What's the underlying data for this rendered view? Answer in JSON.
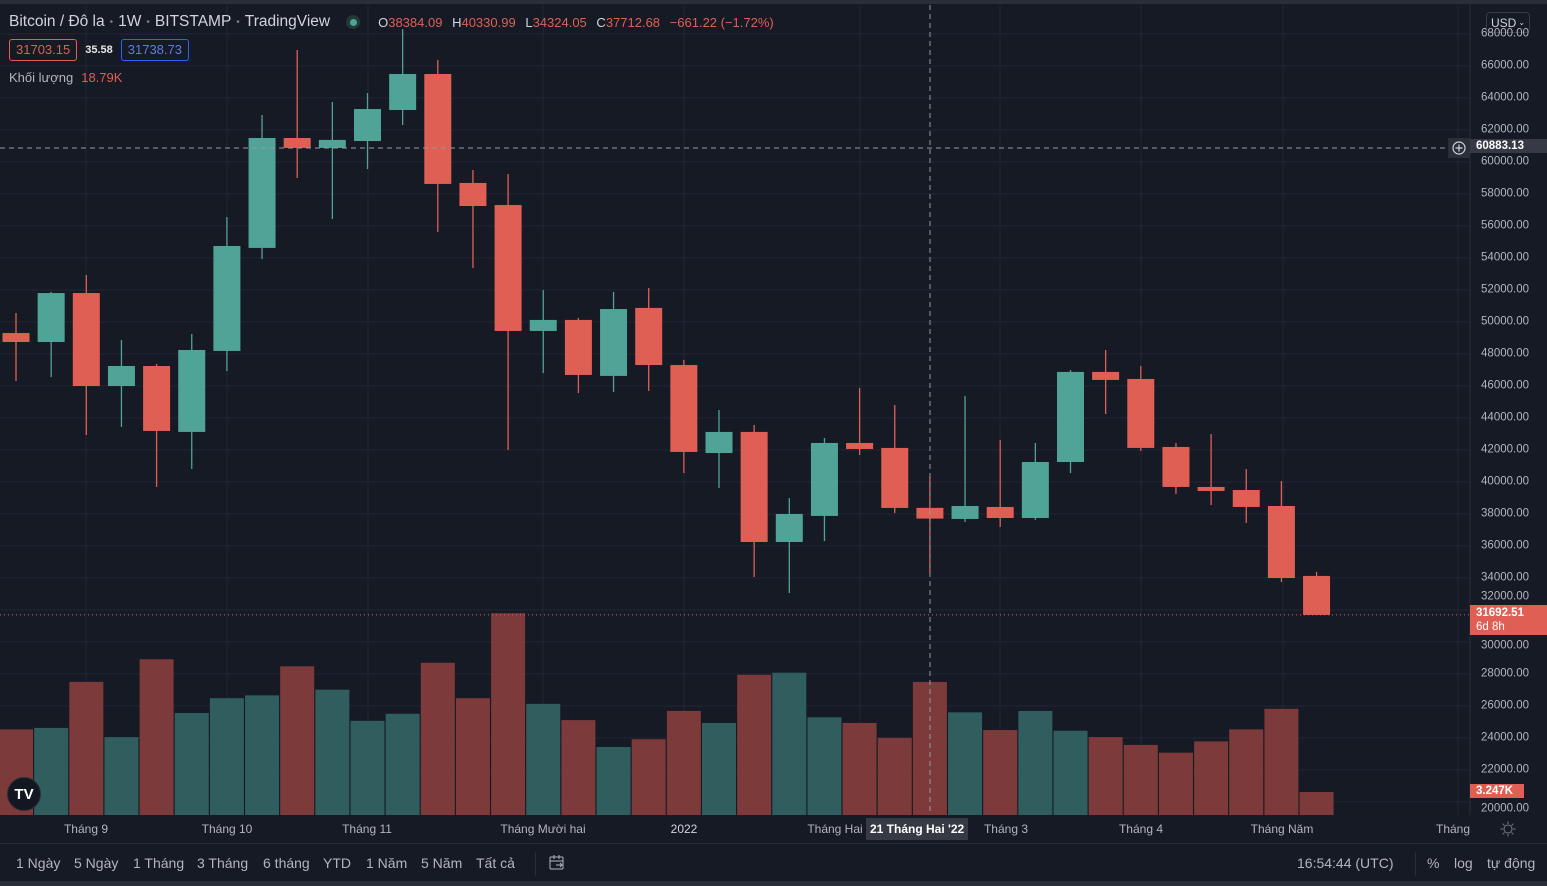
{
  "header": {
    "symbol": "Bitcoin / Đô la",
    "interval": "1W",
    "exchange": "BITSTAMP",
    "source": "TradingView",
    "live_icon": "market-open-dot-icon",
    "ohlc": {
      "o_label": "O",
      "o": "38384.09",
      "h_label": "H",
      "h": "40330.99",
      "l_label": "L",
      "l": "34324.05",
      "c_label": "C",
      "c": "37712.68",
      "change": "−661.22 (−1.72%)"
    },
    "bid": "31703.15",
    "spread": "35.58",
    "ask": "31738.73",
    "volume_label": "Khối lượng",
    "volume_value": "18.79K"
  },
  "currency_button": "USD",
  "crosshair": {
    "price": "60883.13",
    "date": "21 Tháng Hai '22"
  },
  "last_price": {
    "price": "31692.51",
    "countdown": "6d 8h"
  },
  "last_volume": "3.247K",
  "time_axis": {
    "labels": [
      "Tháng 9",
      "Tháng 10",
      "Tháng 11",
      "Tháng Mười hai",
      "2022",
      "Tháng Hai",
      "Tháng 3",
      "Tháng 4",
      "Tháng Năm",
      "Tháng"
    ],
    "settings_icon": "sun-settings-icon"
  },
  "toolbar": {
    "ranges": [
      "1 Ngày",
      "5 Ngày",
      "1 Tháng",
      "3 Tháng",
      "6 tháng",
      "YTD",
      "1 Năm",
      "5 Năm",
      "Tất cả"
    ],
    "goto_icon": "calendar-goto-icon",
    "clock": "16:54:44 (UTC)",
    "percent": "%",
    "log": "log",
    "auto": "tự động"
  },
  "colors": {
    "up": "#4fa397",
    "down": "#e05f55",
    "vol_up": "#305e5e",
    "vol_down": "#7c3a3b",
    "background": "#161a25",
    "grid": "#232733"
  },
  "chart_data": {
    "type": "candlestick",
    "interval": "1W",
    "ylim": [
      20000,
      68000
    ],
    "y_ticks": [
      68000,
      66000,
      64000,
      62000,
      60000,
      58000,
      56000,
      54000,
      52000,
      50000,
      48000,
      46000,
      44000,
      42000,
      40000,
      38000,
      36000,
      34000,
      32000,
      30000,
      28000,
      26000,
      24000,
      22000,
      20000
    ],
    "grid": true,
    "dates": [
      "2021-08-23",
      "2021-08-30",
      "2021-09-06",
      "2021-09-13",
      "2021-09-20",
      "2021-09-27",
      "2021-10-04",
      "2021-10-11",
      "2021-10-18",
      "2021-10-25",
      "2021-11-01",
      "2021-11-08",
      "2021-11-15",
      "2021-11-22",
      "2021-11-29",
      "2021-12-06",
      "2021-12-13",
      "2021-12-20",
      "2021-12-27",
      "2022-01-03",
      "2022-01-10",
      "2022-01-17",
      "2022-01-24",
      "2022-01-31",
      "2022-02-07",
      "2022-02-14",
      "2022-02-21",
      "2022-02-28",
      "2022-03-07",
      "2022-03-14",
      "2022-03-21",
      "2022-03-28",
      "2022-04-04",
      "2022-04-11",
      "2022-04-18",
      "2022-04-25",
      "2022-05-02",
      "2022-05-09"
    ],
    "open": [
      49310,
      48750,
      51810,
      46000,
      47250,
      43130,
      48190,
      54630,
      61500,
      60880,
      61310,
      63250,
      65500,
      58690,
      57310,
      49440,
      50130,
      46630,
      50880,
      47310,
      41810,
      43130,
      36250,
      37880,
      42440,
      42130,
      38384.09,
      37690,
      38440,
      37750,
      41250,
      46880,
      46440,
      42190,
      39690,
      39500,
      38500,
      34130
    ],
    "high": [
      50560,
      51880,
      52940,
      48880,
      47380,
      49250,
      56560,
      62940,
      67000,
      63750,
      64310,
      68300,
      66380,
      59500,
      59250,
      52000,
      50250,
      51880,
      52130,
      47630,
      44500,
      43560,
      39000,
      42750,
      45880,
      44810,
      40330.99,
      45380,
      42630,
      42440,
      47000,
      48250,
      47250,
      42440,
      43000,
      40810,
      40060,
      34380
    ],
    "low": [
      46310,
      46560,
      42940,
      43440,
      39690,
      40810,
      46940,
      53940,
      59000,
      56440,
      59560,
      62310,
      55630,
      53380,
      42000,
      46810,
      45560,
      45630,
      45690,
      40560,
      39630,
      34060,
      33060,
      36310,
      41690,
      38060,
      34324.05,
      37500,
      37190,
      37630,
      40560,
      44250,
      41940,
      39250,
      38560,
      37440,
      33750,
      31692.51
    ],
    "close": [
      48750,
      51810,
      46000,
      47250,
      43190,
      48250,
      54750,
      61500,
      60880,
      61380,
      63310,
      65500,
      58630,
      57250,
      49440,
      50130,
      46690,
      50810,
      47310,
      41880,
      43130,
      36250,
      38000,
      42440,
      42060,
      38380,
      37712.68,
      38500,
      37750,
      41250,
      46880,
      46380,
      42130,
      39690,
      39440,
      38440,
      34000,
      31692.51
    ],
    "volume_label": "Khối lượng",
    "volume_k": [
      12.1,
      12.3,
      18.8,
      11.0,
      22.0,
      14.4,
      16.5,
      16.9,
      21.0,
      17.7,
      13.3,
      14.3,
      21.5,
      16.5,
      28.5,
      15.7,
      13.4,
      9.6,
      10.7,
      14.7,
      13.0,
      19.8,
      20.1,
      13.8,
      13.0,
      10.9,
      18.79,
      14.5,
      12.0,
      14.7,
      11.9,
      11.0,
      9.9,
      8.8,
      10.4,
      12.1,
      15.0,
      3.247
    ]
  }
}
